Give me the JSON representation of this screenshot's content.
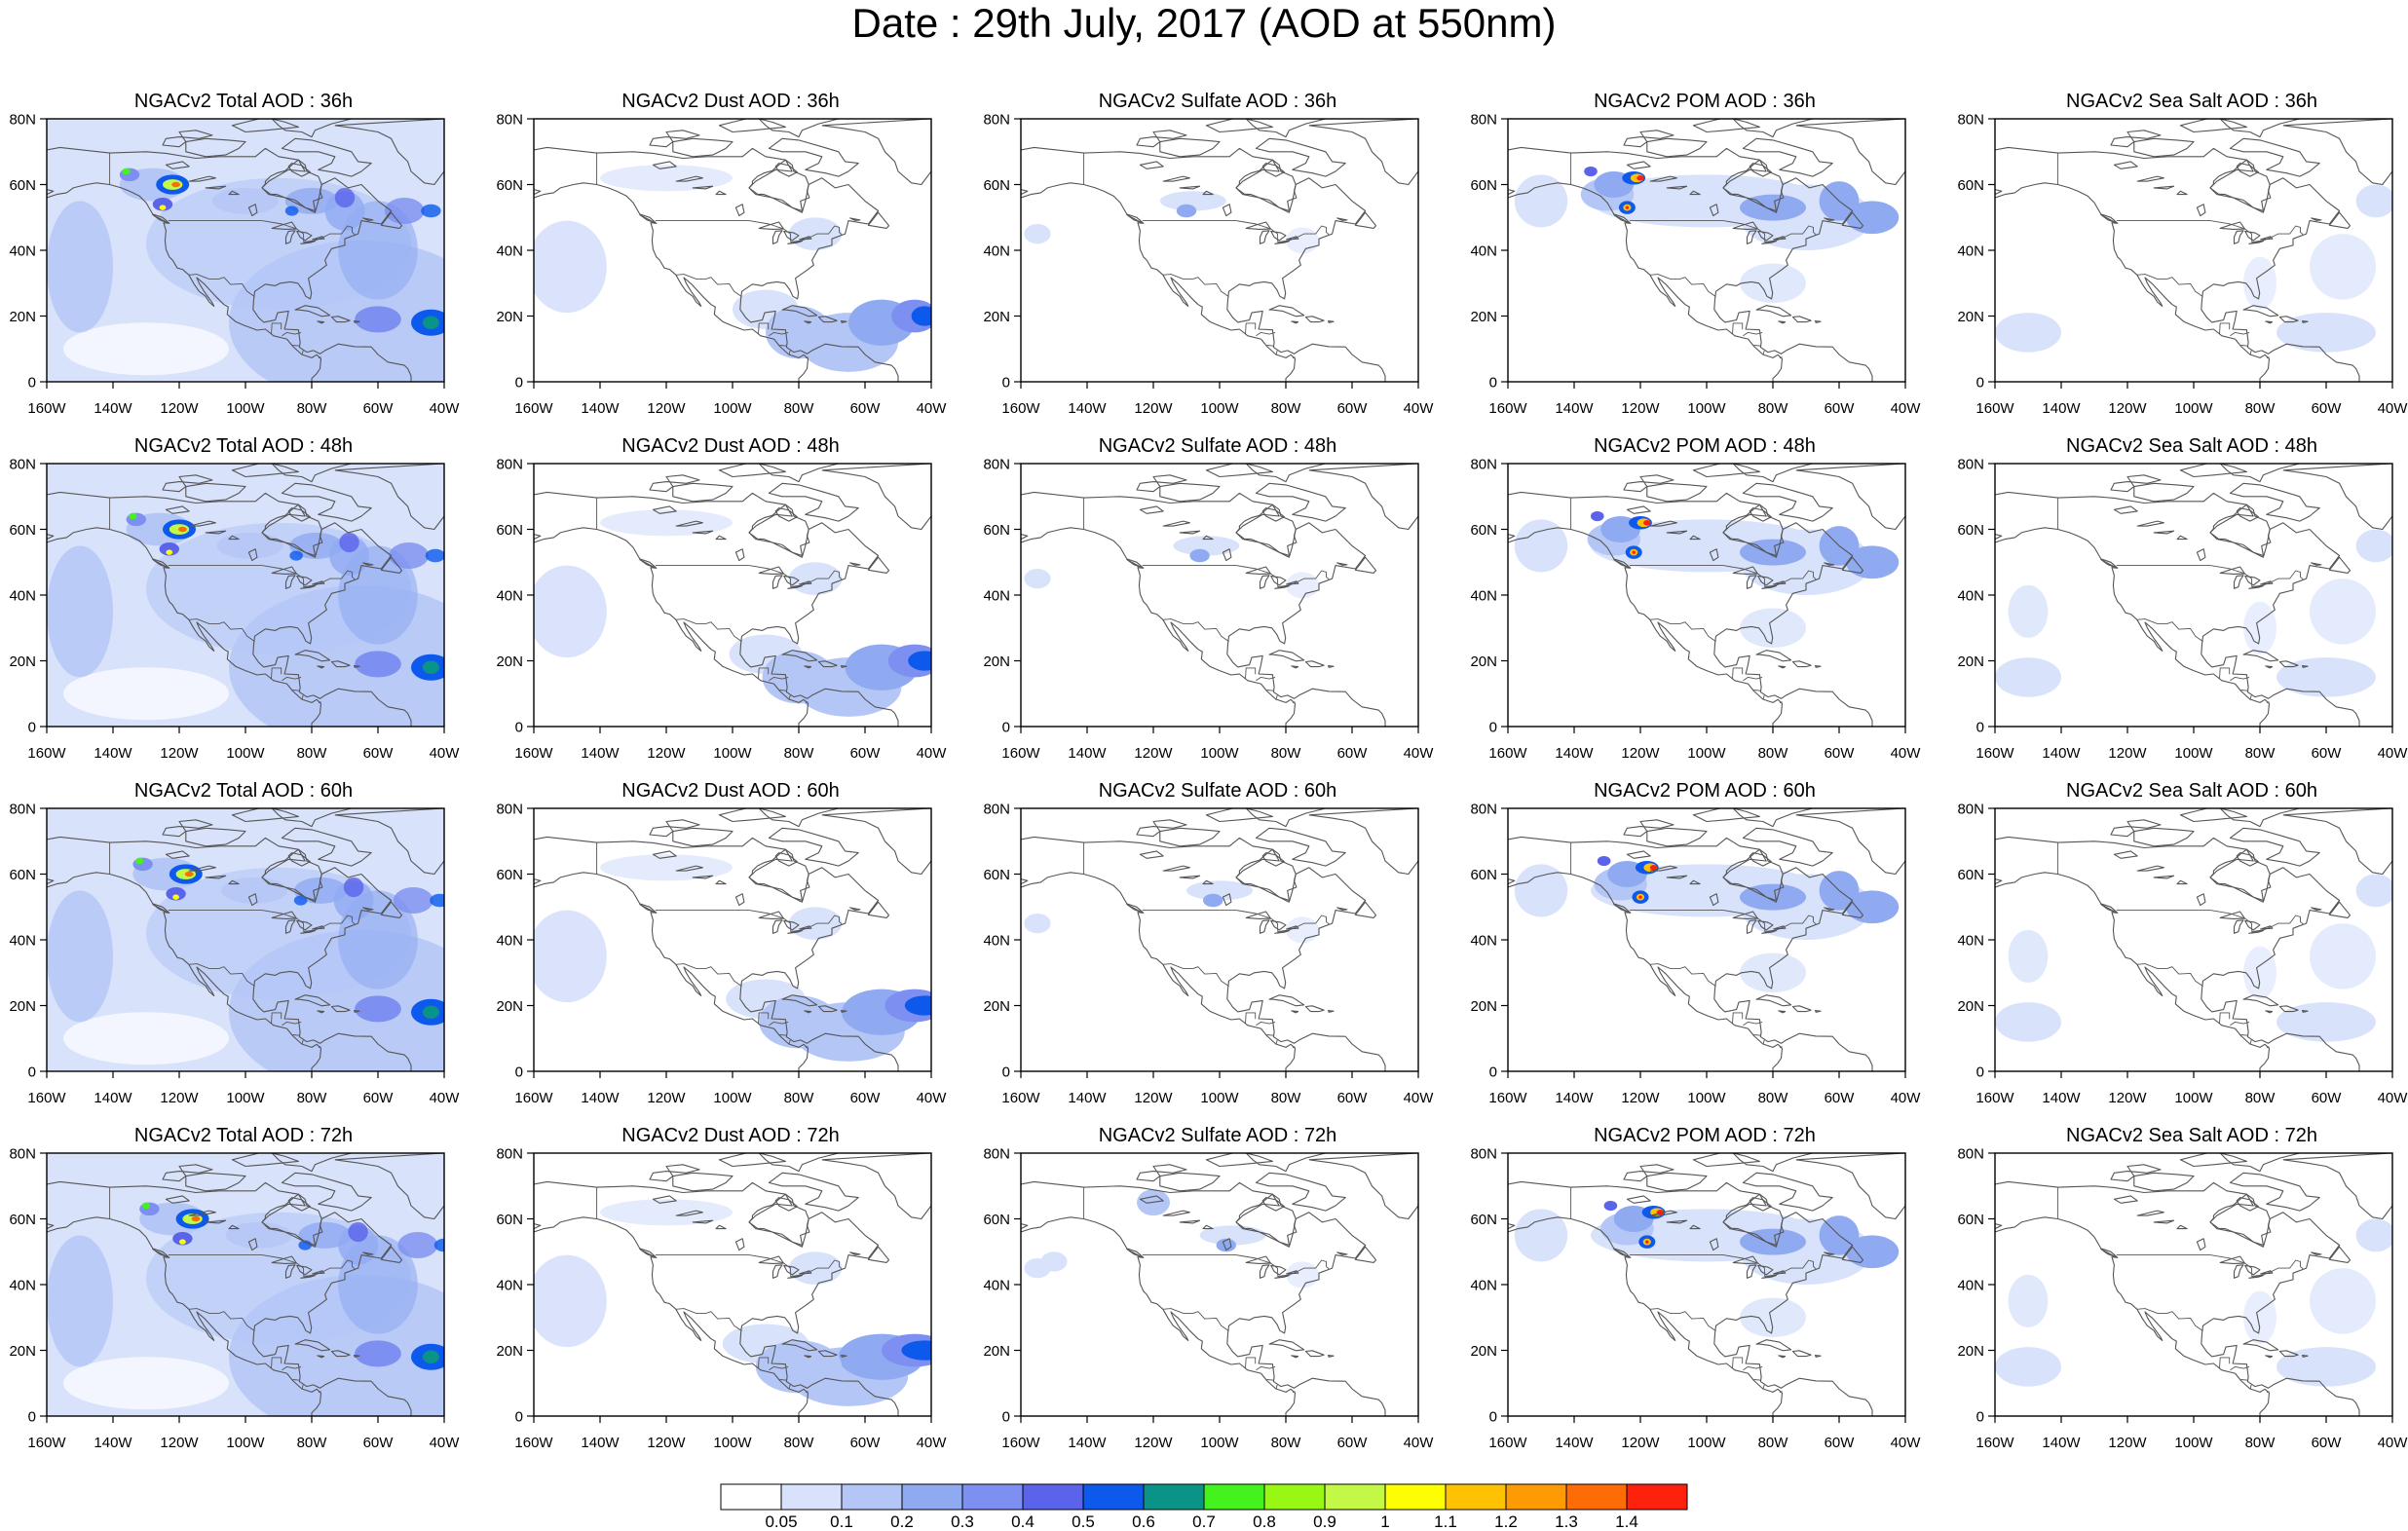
{
  "title": "Date : 29th July, 2017 (AOD at 550nm)",
  "axes": {
    "lat_ticks": [
      "80N",
      "60N",
      "40N",
      "20N",
      "0"
    ],
    "lon_ticks": [
      "160W",
      "140W",
      "120W",
      "100W",
      "80W",
      "60W",
      "40W"
    ],
    "lon_range": [
      -160,
      -40
    ],
    "lat_range": [
      0,
      80
    ]
  },
  "panels": [
    [
      "NGACv2 Total AOD : 36h",
      "NGACv2 Dust AOD : 36h",
      "NGACv2 Sulfate AOD : 36h",
      "NGACv2 POM AOD : 36h",
      "NGACv2 Sea Salt AOD : 36h"
    ],
    [
      "NGACv2 Total AOD : 48h",
      "NGACv2 Dust AOD : 48h",
      "NGACv2 Sulfate AOD : 48h",
      "NGACv2 POM AOD : 48h",
      "NGACv2 Sea Salt AOD : 48h"
    ],
    [
      "NGACv2 Total AOD : 60h",
      "NGACv2 Dust AOD : 60h",
      "NGACv2 Sulfate AOD : 60h",
      "NGACv2 POM AOD : 60h",
      "NGACv2 Sea Salt AOD : 60h"
    ],
    [
      "NGACv2 Total AOD : 72h",
      "NGACv2 Dust AOD : 72h",
      "NGACv2 Sulfate AOD : 72h",
      "NGACv2 POM AOD : 72h",
      "NGACv2 Sea Salt  AOD : 72h"
    ]
  ],
  "colorbar": {
    "labels": [
      "0.05",
      "0.1",
      "0.2",
      "0.3",
      "0.4",
      "0.5",
      "0.6",
      "0.7",
      "0.8",
      "0.9",
      "1",
      "1.1",
      "1.2",
      "1.3",
      "1.4"
    ],
    "colors": [
      "#ffffff",
      "#d8e2fb",
      "#b4c6f6",
      "#90aaf2",
      "#7d8ff0",
      "#5a63ea",
      "#0c59ec",
      "#0a9387",
      "#44f21e",
      "#98f814",
      "#c4f847",
      "#fefe02",
      "#fec203",
      "#fe9a03",
      "#fe6c06",
      "#fe220c"
    ]
  },
  "colors": {
    "coast": "#555555",
    "frame": "#000000"
  }
}
